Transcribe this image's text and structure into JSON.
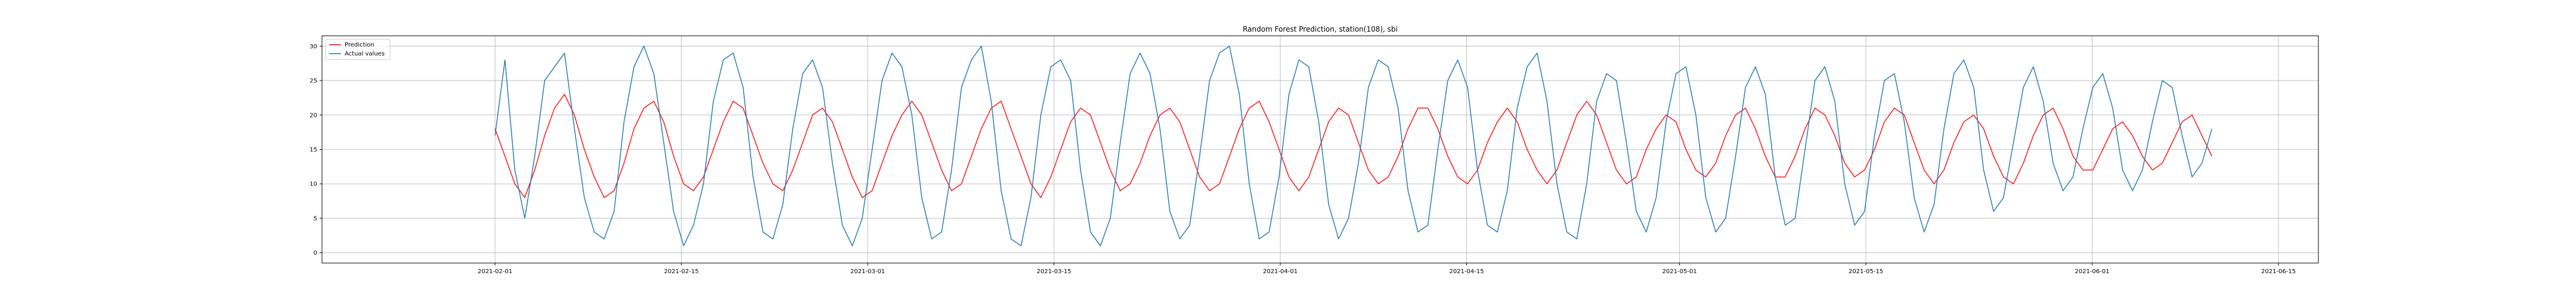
{
  "chart_data": {
    "type": "line",
    "title": "Random Forest Prediction, station(108), sbi",
    "xlabel": "",
    "ylabel": "",
    "x_range": [
      "2021-01-19",
      "2021-06-18"
    ],
    "x_ticks": [
      "2021-02-01",
      "2021-02-15",
      "2021-03-01",
      "2021-03-15",
      "2021-04-01",
      "2021-04-15",
      "2021-05-01",
      "2021-05-15",
      "2021-06-01",
      "2021-06-15"
    ],
    "y_range": [
      -1.5,
      31.5
    ],
    "y_ticks": [
      0,
      5,
      10,
      15,
      20,
      25,
      30
    ],
    "grid": true,
    "legend": "top-left",
    "x_start": "2021-02-01",
    "x_end": "2021-06-10",
    "series": [
      {
        "name": "Prediction",
        "color": "#ff0000",
        "values": [
          18,
          14,
          10,
          8,
          12,
          17,
          21,
          23,
          20,
          15,
          11,
          8,
          9,
          13,
          18,
          21,
          22,
          19,
          14,
          10,
          9,
          11,
          15,
          19,
          22,
          21,
          17,
          13,
          10,
          9,
          12,
          16,
          20,
          21,
          19,
          15,
          11,
          8,
          9,
          13,
          17,
          20,
          22,
          20,
          16,
          12,
          9,
          10,
          14,
          18,
          21,
          22,
          18,
          14,
          10,
          8,
          11,
          15,
          19,
          21,
          20,
          16,
          12,
          9,
          10,
          13,
          17,
          20,
          21,
          19,
          15,
          11,
          9,
          10,
          14,
          18,
          21,
          22,
          19,
          15,
          11,
          9,
          11,
          15,
          19,
          21,
          20,
          16,
          12,
          10,
          11,
          14,
          18,
          21,
          21,
          18,
          14,
          11,
          10,
          12,
          16,
          19,
          21,
          19,
          15,
          12,
          10,
          12,
          16,
          20,
          22,
          20,
          16,
          12,
          10,
          11,
          15,
          18,
          20,
          19,
          15,
          12,
          11,
          13,
          17,
          20,
          21,
          18,
          14,
          11,
          11,
          14,
          18,
          21,
          20,
          17,
          13,
          11,
          12,
          15,
          19,
          21,
          20,
          16,
          12,
          10,
          12,
          16,
          19,
          20,
          18,
          14,
          11,
          10,
          13,
          17,
          20,
          21,
          18,
          14,
          12,
          12,
          15,
          18,
          19,
          17,
          14,
          12,
          13,
          16,
          19,
          20,
          17,
          14
        ]
      },
      {
        "name": "Actual values",
        "color": "#1f77b4",
        "values": [
          17,
          28,
          12,
          5,
          14,
          25,
          27,
          29,
          18,
          8,
          3,
          2,
          6,
          19,
          27,
          30,
          26,
          16,
          6,
          1,
          4,
          10,
          22,
          28,
          29,
          24,
          11,
          3,
          2,
          7,
          18,
          26,
          28,
          24,
          13,
          4,
          1,
          5,
          15,
          25,
          29,
          27,
          20,
          8,
          2,
          3,
          12,
          24,
          28,
          30,
          22,
          9,
          2,
          1,
          8,
          20,
          27,
          28,
          25,
          12,
          3,
          1,
          5,
          16,
          26,
          29,
          26,
          18,
          6,
          2,
          4,
          14,
          25,
          29,
          30,
          23,
          10,
          2,
          3,
          11,
          23,
          28,
          27,
          19,
          7,
          2,
          5,
          13,
          24,
          28,
          27,
          21,
          9,
          3,
          4,
          15,
          25,
          28,
          24,
          12,
          4,
          3,
          9,
          21,
          27,
          29,
          22,
          10,
          3,
          2,
          10,
          22,
          26,
          25,
          16,
          6,
          3,
          8,
          19,
          26,
          27,
          20,
          8,
          3,
          5,
          14,
          24,
          27,
          23,
          11,
          4,
          5,
          15,
          25,
          27,
          22,
          10,
          4,
          6,
          17,
          25,
          26,
          19,
          8,
          3,
          7,
          18,
          26,
          28,
          24,
          12,
          6,
          8,
          16,
          24,
          27,
          22,
          13,
          9,
          11,
          18,
          24,
          26,
          21,
          12,
          9,
          12,
          19,
          25,
          24,
          17,
          11,
          13,
          18
        ]
      }
    ]
  }
}
